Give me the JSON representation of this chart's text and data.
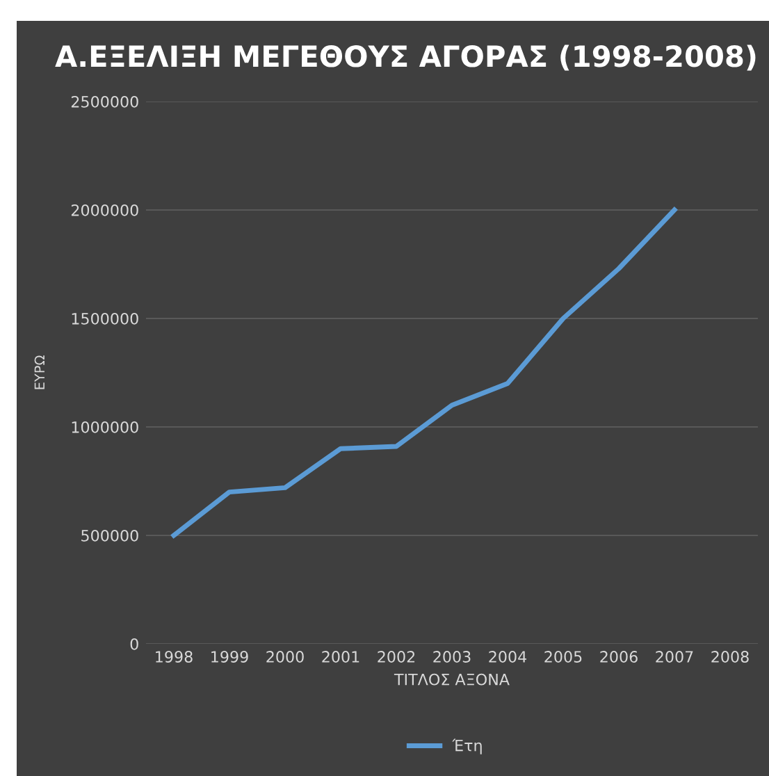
{
  "chart_data": {
    "type": "line",
    "title": "Α.ΕΞΕΛΙΞΗ ΜΕΓΕΘΟΥΣ ΑΓΟΡΑΣ (1998-2008)",
    "xlabel": "ΤΙΤΛΟΣ ΑΞΟΝΑ",
    "ylabel": "ΕΥΡΩ",
    "categories": [
      "1998",
      "1999",
      "2000",
      "2001",
      "2002",
      "2003",
      "2004",
      "2005",
      "2006",
      "2007",
      "2008"
    ],
    "series": [
      {
        "name": "Έτη",
        "color": "#5b9bd5",
        "values": [
          500000,
          700000,
          720000,
          900000,
          910000,
          1100000,
          1200000,
          1500000,
          1730000,
          2000000,
          null
        ]
      }
    ],
    "ylim": [
      0,
      2500000
    ],
    "yticks": [
      0,
      500000,
      1000000,
      1500000,
      2000000,
      2500000
    ],
    "grid": "y",
    "legend": "bottom",
    "marker": "none",
    "line_style": "solid"
  }
}
